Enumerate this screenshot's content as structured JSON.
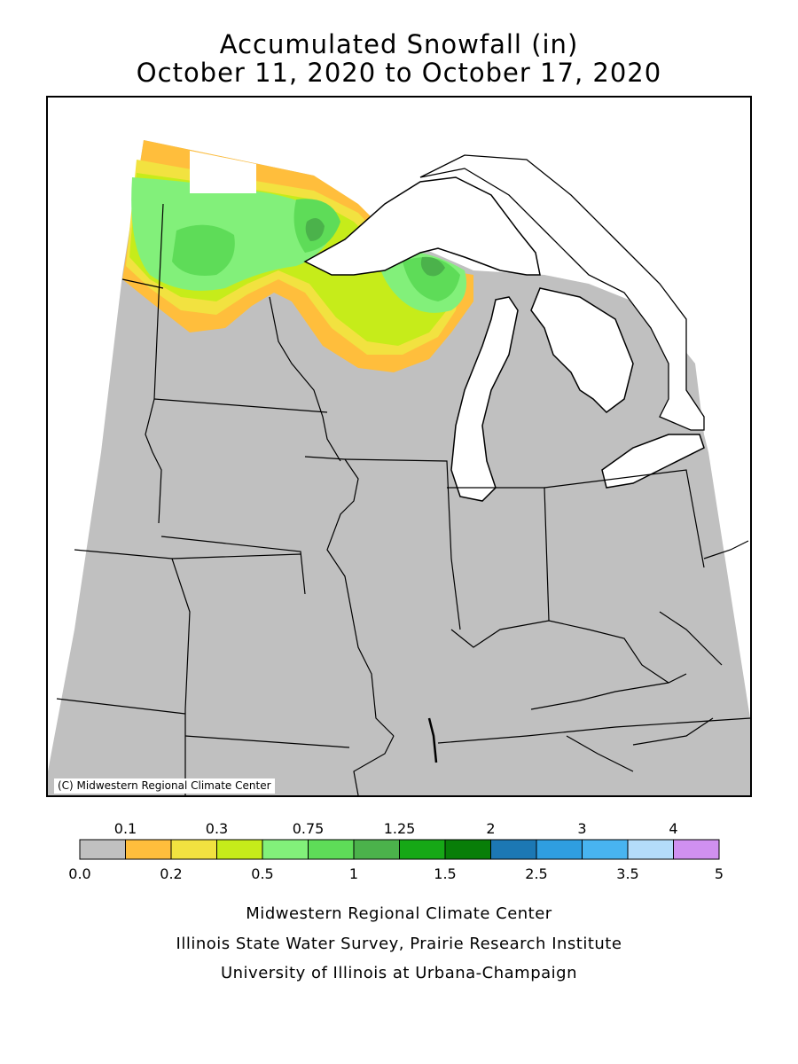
{
  "title": {
    "line1": "Accumulated Snowfall (in)",
    "line2": "October 11, 2020 to October 17, 2020"
  },
  "map": {
    "copyright": "(C) Midwestern Regional Climate Center",
    "land_color": "#c0c0c0",
    "water_color": "#ffffff"
  },
  "legend": {
    "colors": [
      "#c0c0c0",
      "#ffbe3c",
      "#f2e240",
      "#c6ec1a",
      "#82f07a",
      "#5edc58",
      "#4bb24b",
      "#16a816",
      "#087e08",
      "#1c78b4",
      "#2f9ee0",
      "#48b4f0",
      "#b4dcfa",
      "#d090f0"
    ],
    "top_labels": [
      "0.1",
      "0.3",
      "0.75",
      "1.25",
      "2",
      "3",
      "4"
    ],
    "bottom_labels": [
      "0.0",
      "0.2",
      "0.5",
      "1",
      "1.5",
      "2.5",
      "3.5",
      "5"
    ]
  },
  "footer": {
    "line1": "Midwestern Regional Climate Center",
    "line2": "Illinois State Water Survey, Prairie Research Institute",
    "line3": "University of Illinois at Urbana-Champaign"
  }
}
